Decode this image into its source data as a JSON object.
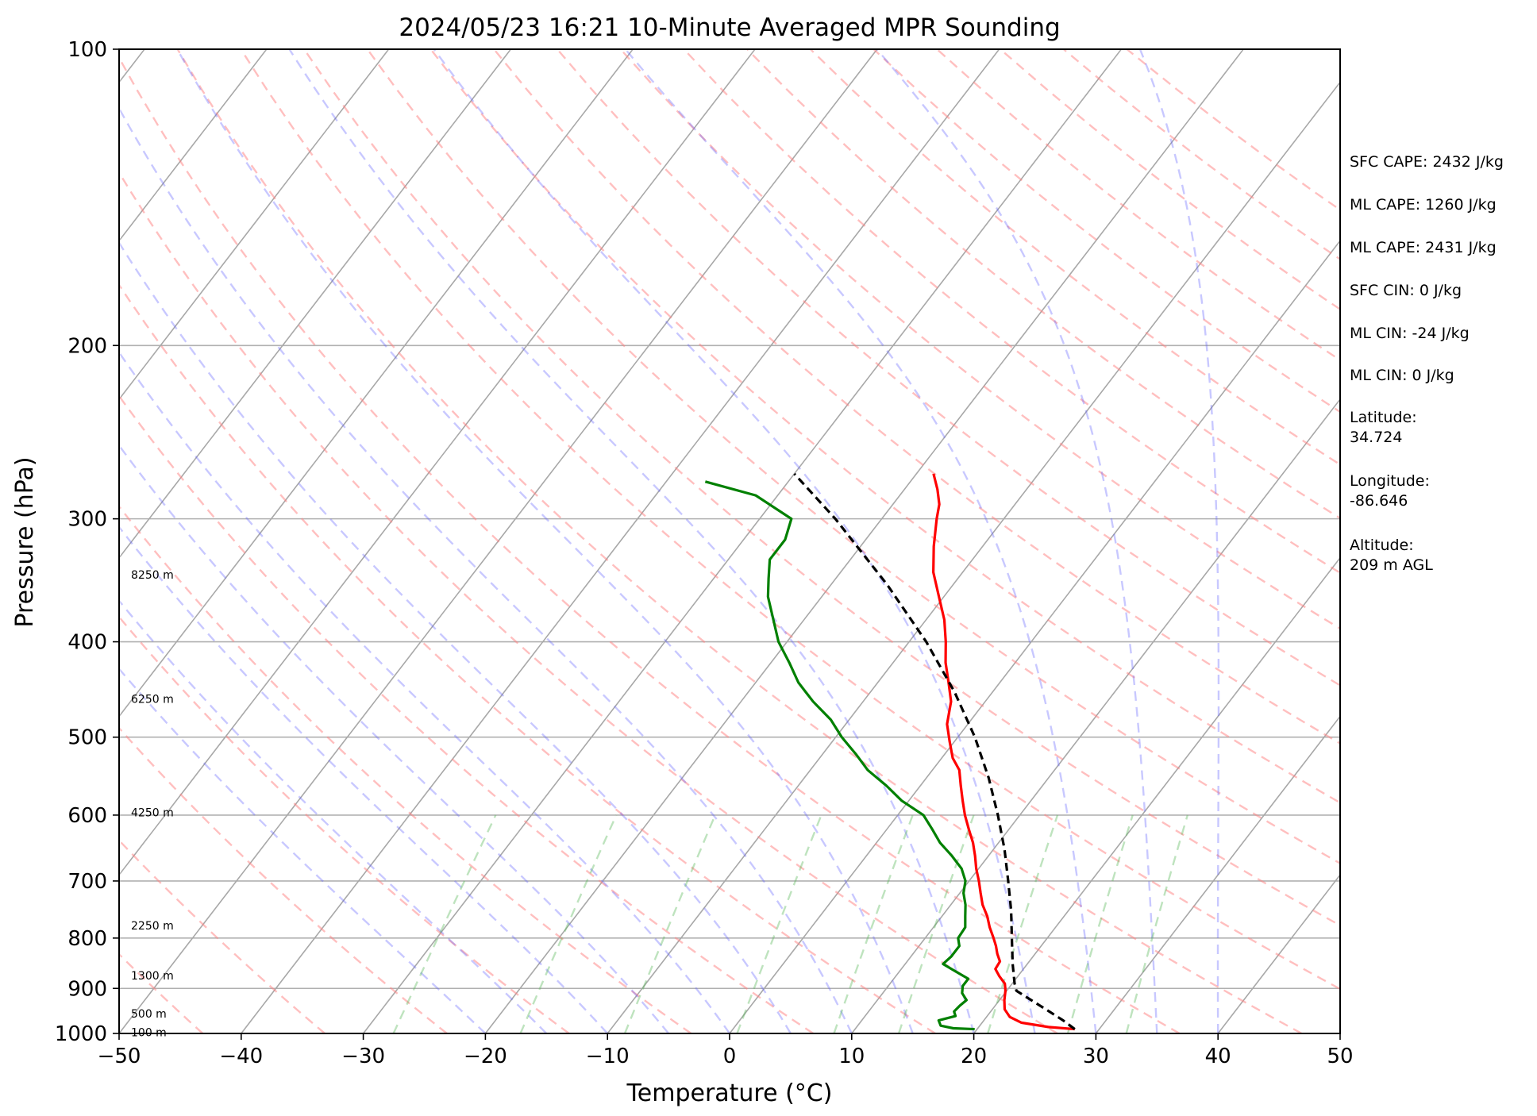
{
  "chart_data": {
    "type": "skew-t",
    "title": "2024/05/23 16:21 10-Minute Averaged MPR Sounding",
    "xlabel": "Temperature (°C)",
    "ylabel": "Pressure (hPa)",
    "xlim": [
      -50,
      50
    ],
    "ylim": [
      1000,
      100
    ],
    "y_scale": "log",
    "x_ticks": [
      "−50",
      "−40",
      "−30",
      "−20",
      "−10",
      "0",
      "10",
      "20",
      "30",
      "40",
      "50"
    ],
    "x_tick_values": [
      -50,
      -40,
      -30,
      -20,
      -10,
      0,
      10,
      20,
      30,
      40,
      50
    ],
    "y_ticks": [
      "100",
      "200",
      "300",
      "400",
      "500",
      "600",
      "700",
      "800",
      "900",
      "1000"
    ],
    "y_tick_values": [
      100,
      200,
      300,
      400,
      500,
      600,
      700,
      800,
      900,
      1000
    ],
    "grid": true,
    "height_labels": [
      {
        "text": "8250 m",
        "pressure": 342
      },
      {
        "text": "6250 m",
        "pressure": 457
      },
      {
        "text": "4250 m",
        "pressure": 596
      },
      {
        "text": "2250 m",
        "pressure": 777
      },
      {
        "text": "1300 m",
        "pressure": 873
      },
      {
        "text": "500 m",
        "pressure": 955
      },
      {
        "text": "100 m",
        "pressure": 997
      }
    ],
    "info_lines": [
      "SFC CAPE: 2432 J/kg",
      "ML CAPE: 1260 J/kg",
      "ML CAPE: 2431 J/kg",
      "SFC CIN: 0 J/kg",
      "ML CIN: -24 J/kg",
      "ML CIN: 0 J/kg",
      "Latitude:",
      "34.724",
      "Longitude:",
      "-86.646",
      "Altitude:",
      "209 m AGL"
    ],
    "series": [
      {
        "color": "#ff0000",
        "style": "solid",
        "points": [
          [
            990,
            28.0
          ],
          [
            985,
            25.7
          ],
          [
            975,
            23.2
          ],
          [
            962,
            21.9
          ],
          [
            945,
            21.0
          ],
          [
            925,
            20.4
          ],
          [
            905,
            19.9
          ],
          [
            890,
            19.4
          ],
          [
            875,
            18.5
          ],
          [
            860,
            17.7
          ],
          [
            845,
            17.6
          ],
          [
            830,
            16.9
          ],
          [
            815,
            16.3
          ],
          [
            800,
            15.6
          ],
          [
            780,
            14.6
          ],
          [
            760,
            13.7
          ],
          [
            740,
            12.6
          ],
          [
            720,
            11.7
          ],
          [
            700,
            10.8
          ],
          [
            680,
            9.8
          ],
          [
            660,
            8.9
          ],
          [
            640,
            7.9
          ],
          [
            620,
            6.7
          ],
          [
            600,
            5.5
          ],
          [
            580,
            4.4
          ],
          [
            560,
            3.3
          ],
          [
            540,
            2.2
          ],
          [
            525,
            0.9
          ],
          [
            505,
            -0.4
          ],
          [
            485,
            -1.7
          ],
          [
            460,
            -2.8
          ],
          [
            440,
            -4.2
          ],
          [
            420,
            -5.7
          ],
          [
            400,
            -7.0
          ],
          [
            380,
            -8.5
          ],
          [
            360,
            -10.4
          ],
          [
            340,
            -12.4
          ],
          [
            320,
            -14.0
          ],
          [
            300,
            -15.5
          ],
          [
            290,
            -16.2
          ],
          [
            280,
            -17.3
          ],
          [
            270,
            -18.6
          ]
        ]
      },
      {
        "color": "#008000",
        "style": "solid",
        "points": [
          [
            990,
            19.8
          ],
          [
            988,
            18.0
          ],
          [
            982,
            16.8
          ],
          [
            970,
            16.3
          ],
          [
            960,
            17.4
          ],
          [
            950,
            17.0
          ],
          [
            937,
            17.1
          ],
          [
            925,
            17.3
          ],
          [
            910,
            16.5
          ],
          [
            895,
            16.1
          ],
          [
            880,
            16.1
          ],
          [
            865,
            14.6
          ],
          [
            850,
            13.1
          ],
          [
            835,
            13.3
          ],
          [
            815,
            13.3
          ],
          [
            800,
            12.7
          ],
          [
            780,
            12.6
          ],
          [
            760,
            11.9
          ],
          [
            740,
            11.2
          ],
          [
            720,
            10.3
          ],
          [
            700,
            9.7
          ],
          [
            680,
            8.6
          ],
          [
            660,
            7.0
          ],
          [
            640,
            5.2
          ],
          [
            620,
            3.7
          ],
          [
            600,
            2.1
          ],
          [
            580,
            -0.6
          ],
          [
            560,
            -2.8
          ],
          [
            540,
            -5.3
          ],
          [
            520,
            -7.3
          ],
          [
            500,
            -9.5
          ],
          [
            480,
            -11.5
          ],
          [
            460,
            -14.1
          ],
          [
            440,
            -16.5
          ],
          [
            420,
            -18.5
          ],
          [
            400,
            -20.7
          ],
          [
            380,
            -22.5
          ],
          [
            360,
            -24.4
          ],
          [
            345,
            -25.5
          ],
          [
            330,
            -26.6
          ],
          [
            315,
            -26.6
          ],
          [
            300,
            -27.4
          ],
          [
            284,
            -31.8
          ],
          [
            275,
            -36.8
          ]
        ]
      },
      {
        "color": "#000000",
        "style": "dashed",
        "points": [
          [
            990,
            28.0
          ],
          [
            970,
            26.5
          ],
          [
            950,
            24.8
          ],
          [
            925,
            22.6
          ],
          [
            905,
            20.8
          ],
          [
            890,
            20.2
          ],
          [
            850,
            18.8
          ],
          [
            800,
            17.1
          ],
          [
            750,
            15.3
          ],
          [
            700,
            13.2
          ],
          [
            650,
            10.9
          ],
          [
            600,
            8.2
          ],
          [
            550,
            5.1
          ],
          [
            500,
            1.4
          ],
          [
            450,
            -3.1
          ],
          [
            400,
            -8.6
          ],
          [
            350,
            -15.4
          ],
          [
            300,
            -23.8
          ],
          [
            270,
            -30.0
          ]
        ]
      }
    ]
  }
}
